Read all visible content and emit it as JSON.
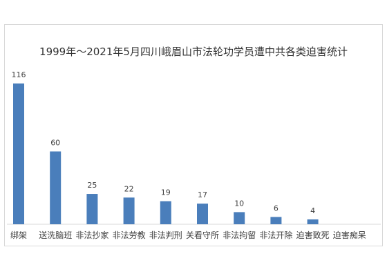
{
  "chart_data": {
    "type": "bar",
    "title": "1999年～2021年5月四川峨眉山市法轮功学员遭中共各类迫害统计",
    "categories": [
      "绑架",
      "送洗脑班",
      "非法抄家",
      "非法劳教",
      "非法判刑",
      "关看守所",
      "非法拘留",
      "非法开除",
      "迫害致死",
      "迫害痴呆"
    ],
    "values": [
      116,
      60,
      25,
      22,
      19,
      17,
      10,
      6,
      4,
      null
    ],
    "value_labels": [
      "116",
      "60",
      "25",
      "22",
      "19",
      "17",
      "10",
      "6",
      "4",
      ""
    ],
    "bar_color": "#4a7ebb",
    "xlabel": "",
    "ylabel": "",
    "ylim": [
      0,
      116
    ],
    "grid": false,
    "legend": "none"
  }
}
